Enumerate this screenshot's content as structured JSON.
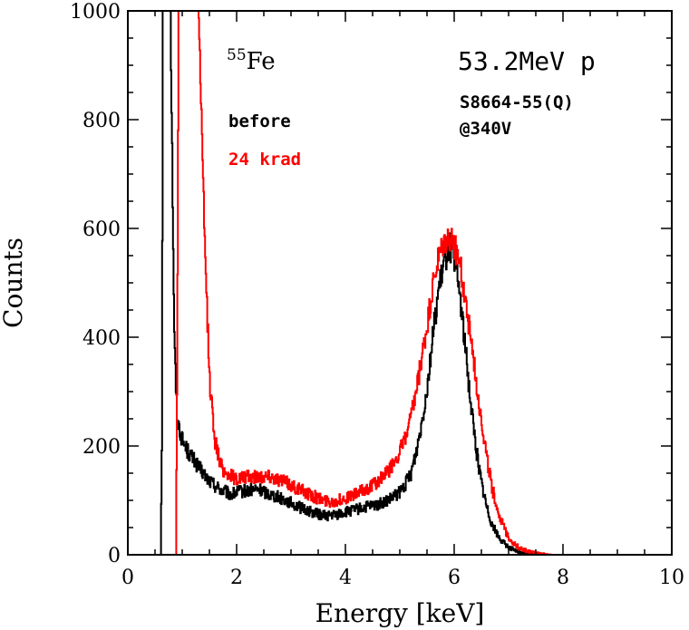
{
  "chart_data": {
    "type": "line",
    "xlabel": "Energy [keV]",
    "ylabel": "Counts",
    "xlim": [
      0,
      10
    ],
    "ylim": [
      0,
      1000
    ],
    "x_ticks": [
      "0",
      "2",
      "4",
      "6",
      "8",
      "10"
    ],
    "y_ticks": [
      "0",
      "200",
      "400",
      "600",
      "800",
      "1000"
    ],
    "grid": false,
    "annotations": {
      "source_sup": "55",
      "source_name": "Fe",
      "beam": "53.2MeV p",
      "device": "S8664-55(Q)",
      "bias": "@340V"
    },
    "series": [
      {
        "name": "before",
        "color": "#000000",
        "x": [
          0,
          0.6,
          0.62,
          0.64,
          0.68,
          0.72,
          0.78,
          0.85,
          0.9,
          1.0,
          1.1,
          1.2,
          1.3,
          1.5,
          1.7,
          1.9,
          2.0,
          2.2,
          2.4,
          2.6,
          2.8,
          3.0,
          3.2,
          3.4,
          3.6,
          3.8,
          4.0,
          4.2,
          4.4,
          4.6,
          4.8,
          5.0,
          5.1,
          5.2,
          5.3,
          5.4,
          5.5,
          5.6,
          5.7,
          5.8,
          5.9,
          6.0,
          6.1,
          6.2,
          6.3,
          6.4,
          6.5,
          6.6,
          6.7,
          6.8,
          6.9,
          7.0,
          7.1,
          7.2,
          7.4,
          7.6,
          10
        ],
        "y": [
          0,
          0,
          200,
          1000,
          1000,
          1000,
          1000,
          400,
          250,
          210,
          190,
          175,
          160,
          135,
          120,
          110,
          115,
          118,
          120,
          112,
          105,
          95,
          85,
          78,
          72,
          73,
          78,
          83,
          88,
          92,
          100,
          115,
          130,
          150,
          190,
          245,
          310,
          400,
          480,
          530,
          570,
          545,
          480,
          380,
          280,
          195,
          130,
          85,
          55,
          35,
          22,
          14,
          8,
          4,
          1,
          0,
          0
        ]
      },
      {
        "name": "24 krad",
        "color": "#ff0000",
        "x": [
          0,
          0.88,
          0.9,
          0.93,
          1.0,
          1.1,
          1.2,
          1.3,
          1.4,
          1.5,
          1.6,
          1.7,
          1.8,
          2.0,
          2.2,
          2.4,
          2.6,
          2.8,
          3.0,
          3.2,
          3.4,
          3.6,
          3.8,
          4.0,
          4.2,
          4.4,
          4.6,
          4.8,
          5.0,
          5.1,
          5.2,
          5.3,
          5.4,
          5.5,
          5.6,
          5.7,
          5.8,
          5.9,
          6.0,
          6.1,
          6.2,
          6.3,
          6.4,
          6.5,
          6.6,
          6.7,
          6.8,
          6.9,
          7.0,
          7.1,
          7.2,
          7.4,
          7.6,
          7.8,
          10
        ],
        "y": [
          0,
          0,
          300,
          1000,
          1000,
          1000,
          1000,
          1000,
          600,
          320,
          210,
          165,
          150,
          140,
          142,
          145,
          145,
          138,
          128,
          118,
          108,
          100,
          98,
          104,
          112,
          122,
          135,
          155,
          190,
          215,
          250,
          300,
          360,
          420,
          490,
          540,
          570,
          580,
          570,
          535,
          470,
          400,
          320,
          245,
          175,
          120,
          80,
          52,
          32,
          20,
          12,
          5,
          2,
          0,
          0
        ]
      }
    ]
  }
}
